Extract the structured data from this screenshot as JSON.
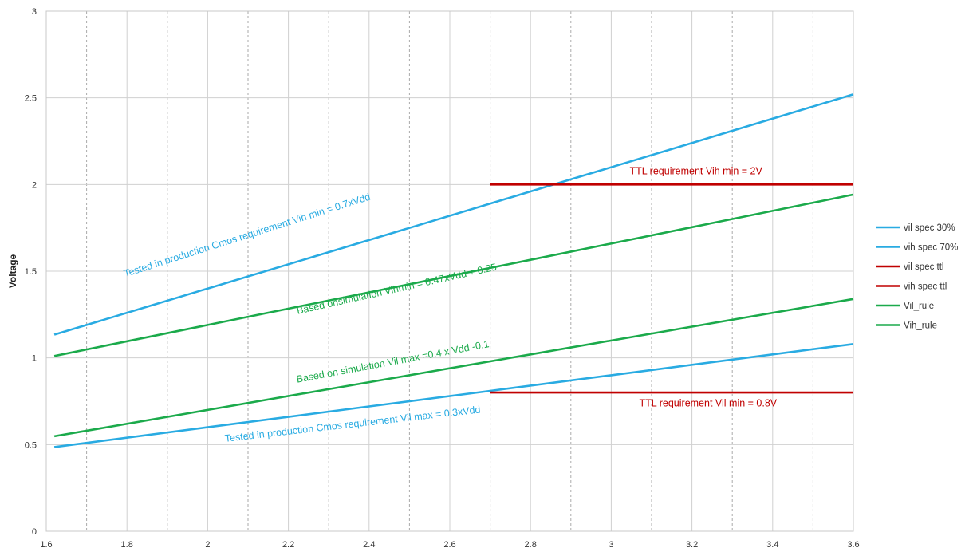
{
  "chart_data": {
    "type": "line",
    "title": "",
    "xlabel": "",
    "ylabel": "Voltage",
    "xlim": [
      1.6,
      3.6
    ],
    "ylim": [
      0,
      3
    ],
    "x_ticks": [
      "1.6",
      "1.8",
      "2",
      "2.2",
      "2.4",
      "2.6",
      "2.8",
      "3",
      "3.2",
      "3.4",
      "3.6"
    ],
    "y_ticks": [
      "0",
      "0.5",
      "1",
      "1.5",
      "2",
      "2.5",
      "3"
    ],
    "grid": true,
    "legend_position": "right",
    "series": [
      {
        "name": "vil spec 30%",
        "color": "#29ABE2",
        "x": [
          1.62,
          2.0,
          2.4,
          2.7,
          3.0,
          3.3,
          3.6
        ],
        "y": [
          0.486,
          0.6,
          0.72,
          0.81,
          0.9,
          0.99,
          1.08
        ]
      },
      {
        "name": "vih spec 70%",
        "color": "#29ABE2",
        "x": [
          1.62,
          2.0,
          2.4,
          2.8,
          3.2,
          3.6
        ],
        "y": [
          1.134,
          1.4,
          1.68,
          1.96,
          2.24,
          2.52
        ]
      },
      {
        "name": "vil spec ttl",
        "color": "#C00000",
        "x": [
          2.7,
          3.6
        ],
        "y": [
          0.8,
          0.8
        ]
      },
      {
        "name": "vih spec ttl",
        "color": "#C00000",
        "x": [
          2.7,
          3.6
        ],
        "y": [
          2.0,
          2.0
        ]
      },
      {
        "name": "Vil_rule",
        "color": "#1BAA4B",
        "x": [
          1.62,
          2.0,
          2.4,
          2.8,
          3.2,
          3.6
        ],
        "y": [
          0.548,
          0.7,
          0.86,
          1.02,
          1.18,
          1.34
        ]
      },
      {
        "name": "Vih_rule",
        "color": "#1BAA4B",
        "x": [
          1.62,
          2.0,
          2.4,
          2.8,
          3.2,
          3.6
        ],
        "y": [
          1.011,
          1.19,
          1.378,
          1.566,
          1.754,
          1.942
        ]
      }
    ],
    "annotations": [
      {
        "text": "Tested in production Cmos requirement Vih min = 0.7xVdd",
        "color": "#29ABE2",
        "x": 2.1,
        "y": 1.69,
        "angle": -17.5
      },
      {
        "text": "Based onsimulation Vihmin = 0.47xVdd + 0.25",
        "color": "#1BAA4B",
        "x": 2.47,
        "y": 1.38,
        "angle": -12.5
      },
      {
        "text": "Based on simulation Vil max =0.4 x Vdd -0.1",
        "color": "#1BAA4B",
        "x": 2.46,
        "y": 0.96,
        "angle": -10.5
      },
      {
        "text": "Tested in production Cmos requirement Vil max = 0.3xVdd",
        "color": "#29ABE2",
        "x": 2.36,
        "y": 0.6,
        "angle": -6.5
      },
      {
        "text": "TTL requirement Vih min = 2V",
        "color": "#C00000",
        "x": 3.21,
        "y": 2.06,
        "angle": 0
      },
      {
        "text": "TTL requirement Vil min = 0.8V",
        "color": "#C00000",
        "x": 3.24,
        "y": 0.72,
        "angle": 0
      }
    ]
  }
}
